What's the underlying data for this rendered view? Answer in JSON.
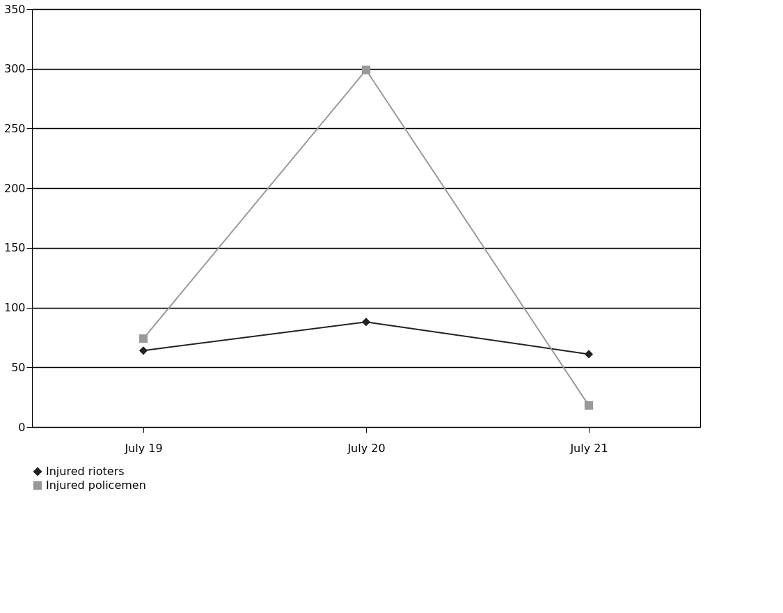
{
  "chart_data": {
    "type": "line",
    "categories": [
      "July 19",
      "July 20",
      "July 21"
    ],
    "series": [
      {
        "name": "Injured rioters",
        "color": "#222222",
        "marker": "diamond",
        "values": [
          64,
          88,
          61
        ]
      },
      {
        "name": "Injured policemen",
        "color": "#999999",
        "marker": "square",
        "values": [
          74,
          299,
          18
        ]
      }
    ],
    "ylim": [
      0,
      350
    ],
    "yticks": [
      0,
      50,
      100,
      150,
      200,
      250,
      300,
      350
    ],
    "grid": "y",
    "legend": "bottom left",
    "line_style": "solid"
  }
}
